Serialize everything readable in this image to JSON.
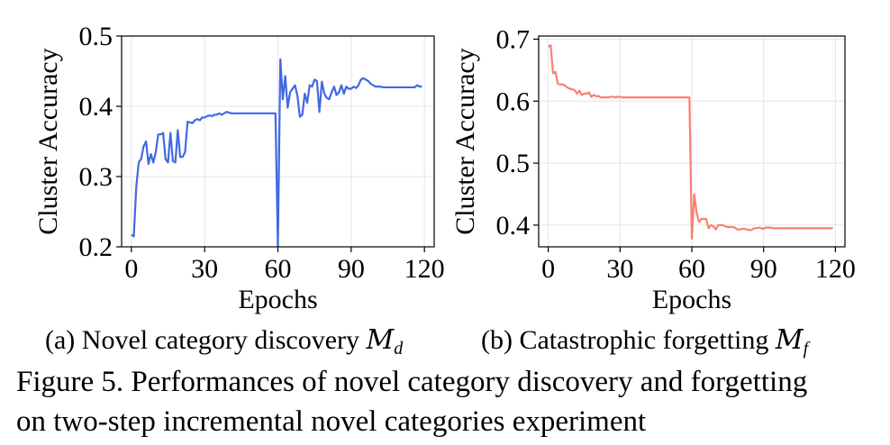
{
  "chart_data": [
    {
      "type": "line",
      "id": "a",
      "title": "",
      "xlabel": "Epochs",
      "ylabel": "Cluster Accuracy",
      "xlim": [
        -4,
        124
      ],
      "ylim": [
        0.2,
        0.5
      ],
      "xticks": [
        0,
        30,
        60,
        90,
        120
      ],
      "xtick_labels": [
        "0",
        "30",
        "60",
        "90",
        "120"
      ],
      "yticks": [
        0.2,
        0.3,
        0.4,
        0.5
      ],
      "ytick_labels": [
        "0.2",
        "0.3",
        "0.4",
        "0.5"
      ],
      "grid": true,
      "color": "#4169e1",
      "x": [
        0,
        1,
        2,
        3,
        4,
        5,
        6,
        7,
        8,
        9,
        10,
        11,
        12,
        13,
        14,
        15,
        16,
        17,
        18,
        19,
        20,
        21,
        22,
        23,
        24,
        25,
        26,
        27,
        28,
        29,
        30,
        31,
        32,
        33,
        34,
        35,
        36,
        37,
        38,
        39,
        40,
        41,
        42,
        43,
        44,
        45,
        46,
        47,
        48,
        49,
        50,
        51,
        52,
        53,
        54,
        55,
        56,
        57,
        58,
        59,
        60,
        61,
        62,
        63,
        64,
        65,
        66,
        67,
        68,
        69,
        70,
        71,
        72,
        73,
        74,
        75,
        76,
        77,
        78,
        79,
        80,
        81,
        82,
        83,
        84,
        85,
        86,
        87,
        88,
        89,
        90,
        91,
        92,
        93,
        94,
        95,
        96,
        97,
        98,
        99,
        100,
        101,
        102,
        103,
        104,
        105,
        106,
        107,
        108,
        109,
        110,
        111,
        112,
        113,
        114,
        115,
        116,
        117,
        118,
        119
      ],
      "y": [
        0.217,
        0.215,
        0.285,
        0.32,
        0.325,
        0.343,
        0.35,
        0.318,
        0.332,
        0.32,
        0.335,
        0.36,
        0.36,
        0.362,
        0.325,
        0.32,
        0.362,
        0.322,
        0.32,
        0.366,
        0.328,
        0.328,
        0.335,
        0.378,
        0.377,
        0.376,
        0.38,
        0.382,
        0.38,
        0.384,
        0.384,
        0.386,
        0.387,
        0.386,
        0.388,
        0.388,
        0.39,
        0.388,
        0.39,
        0.392,
        0.391,
        0.39,
        0.39,
        0.39,
        0.39,
        0.39,
        0.39,
        0.39,
        0.39,
        0.39,
        0.39,
        0.39,
        0.39,
        0.39,
        0.39,
        0.39,
        0.39,
        0.39,
        0.39,
        0.39,
        0.2,
        0.467,
        0.41,
        0.443,
        0.398,
        0.42,
        0.425,
        0.43,
        0.415,
        0.385,
        0.388,
        0.418,
        0.405,
        0.43,
        0.428,
        0.438,
        0.436,
        0.392,
        0.435,
        0.418,
        0.412,
        0.41,
        0.42,
        0.428,
        0.416,
        0.42,
        0.43,
        0.418,
        0.428,
        0.425,
        0.425,
        0.428,
        0.426,
        0.43,
        0.438,
        0.44,
        0.438,
        0.436,
        0.432,
        0.43,
        0.428,
        0.428,
        0.428,
        0.427,
        0.427,
        0.427,
        0.427,
        0.427,
        0.427,
        0.427,
        0.427,
        0.427,
        0.427,
        0.427,
        0.427,
        0.427,
        0.427,
        0.43,
        0.428,
        0.428
      ]
    },
    {
      "type": "line",
      "id": "b",
      "title": "",
      "xlabel": "Epochs",
      "ylabel": "Cluster Accuracy",
      "xlim": [
        -4,
        124
      ],
      "ylim": [
        0.365,
        0.705
      ],
      "xticks": [
        0,
        30,
        60,
        90,
        120
      ],
      "xtick_labels": [
        "0",
        "30",
        "60",
        "90",
        "120"
      ],
      "yticks": [
        0.4,
        0.5,
        0.6,
        0.7
      ],
      "ytick_labels": [
        "0.4",
        "0.5",
        "0.6",
        "0.7"
      ],
      "grid": true,
      "color": "#fa8072",
      "x": [
        0,
        1,
        2,
        3,
        4,
        5,
        6,
        7,
        8,
        9,
        10,
        11,
        12,
        13,
        14,
        15,
        16,
        17,
        18,
        19,
        20,
        21,
        22,
        23,
        24,
        25,
        26,
        27,
        28,
        29,
        30,
        31,
        32,
        33,
        34,
        35,
        36,
        37,
        38,
        39,
        40,
        41,
        42,
        43,
        44,
        45,
        46,
        47,
        48,
        49,
        50,
        51,
        52,
        53,
        54,
        55,
        56,
        57,
        58,
        59,
        60,
        61,
        62,
        63,
        64,
        65,
        66,
        67,
        68,
        69,
        70,
        71,
        72,
        73,
        74,
        75,
        76,
        77,
        78,
        79,
        80,
        81,
        82,
        83,
        84,
        85,
        86,
        87,
        88,
        89,
        90,
        91,
        92,
        93,
        94,
        95,
        96,
        97,
        98,
        99,
        100,
        101,
        102,
        103,
        104,
        105,
        106,
        107,
        108,
        109,
        110,
        111,
        112,
        113,
        114,
        115,
        116,
        117,
        118,
        119
      ],
      "y": [
        0.688,
        0.69,
        0.645,
        0.647,
        0.628,
        0.627,
        0.627,
        0.625,
        0.622,
        0.62,
        0.619,
        0.618,
        0.612,
        0.617,
        0.61,
        0.612,
        0.612,
        0.614,
        0.607,
        0.61,
        0.608,
        0.608,
        0.606,
        0.606,
        0.606,
        0.606,
        0.607,
        0.607,
        0.606,
        0.607,
        0.607,
        0.606,
        0.606,
        0.606,
        0.606,
        0.606,
        0.606,
        0.606,
        0.606,
        0.606,
        0.606,
        0.606,
        0.606,
        0.606,
        0.606,
        0.606,
        0.606,
        0.606,
        0.606,
        0.606,
        0.606,
        0.606,
        0.606,
        0.606,
        0.606,
        0.606,
        0.606,
        0.606,
        0.606,
        0.606,
        0.378,
        0.45,
        0.42,
        0.405,
        0.41,
        0.41,
        0.41,
        0.395,
        0.4,
        0.398,
        0.393,
        0.4,
        0.4,
        0.4,
        0.398,
        0.397,
        0.397,
        0.397,
        0.396,
        0.393,
        0.393,
        0.394,
        0.394,
        0.393,
        0.392,
        0.392,
        0.395,
        0.395,
        0.396,
        0.395,
        0.394,
        0.396,
        0.396,
        0.396,
        0.395,
        0.395,
        0.395,
        0.395,
        0.395,
        0.395,
        0.395,
        0.395,
        0.395,
        0.395,
        0.395,
        0.395,
        0.395,
        0.395,
        0.395,
        0.395,
        0.395,
        0.395,
        0.395,
        0.395,
        0.395,
        0.395,
        0.395,
        0.395,
        0.395,
        0.395
      ]
    }
  ],
  "captions": {
    "a_prefix": "(a) Novel category discovery ",
    "a_math": "M",
    "a_sub": "d",
    "b_prefix": "(b) Catastrophic forgetting ",
    "b_math": "M",
    "b_sub": "f",
    "figure_line1": "Figure 5. Performances of novel category discovery and forgetting",
    "figure_line2": "on two-step incremental novel categories experiment"
  }
}
